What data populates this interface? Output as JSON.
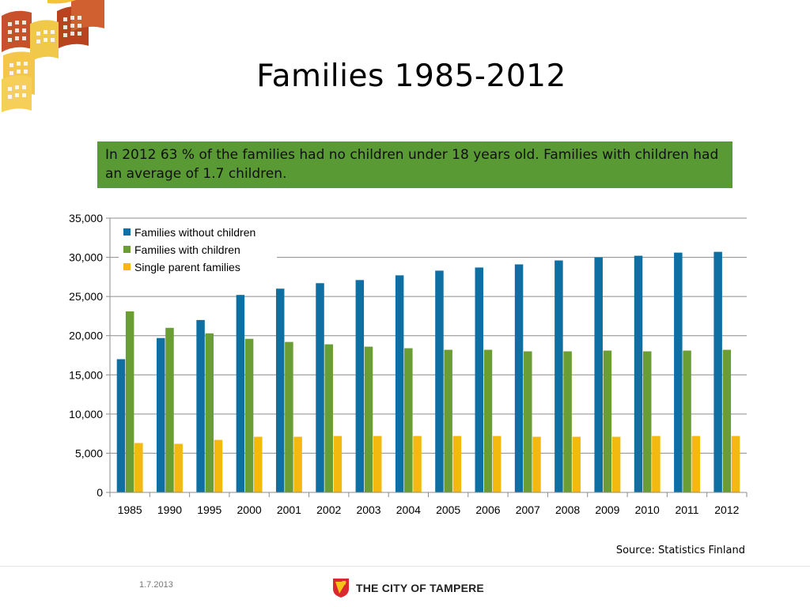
{
  "slide": {
    "title": "Families 1985-2012",
    "callout": "In 2012 63 % of the families had no children under 18 years old. Families with children had an average of 1.7 children.",
    "source": "Source: Statistics Finland",
    "footer_date": "1.7.2013",
    "footer_brand": "THE CITY OF TAMPERE",
    "callout_color": "#5a9a34"
  },
  "chart_data": {
    "type": "bar",
    "categories": [
      "1985",
      "1990",
      "1995",
      "2000",
      "2001",
      "2002",
      "2003",
      "2004",
      "2005",
      "2006",
      "2007",
      "2008",
      "2009",
      "2010",
      "2011",
      "2012"
    ],
    "series": [
      {
        "name": "Families without children",
        "color": "#0e6fa2",
        "values": [
          17000,
          19700,
          22000,
          25200,
          26000,
          26700,
          27100,
          27700,
          28300,
          28700,
          29100,
          29600,
          30000,
          30200,
          30600,
          30700
        ]
      },
      {
        "name": "Families with children",
        "color": "#6a9d34",
        "values": [
          23100,
          21000,
          20300,
          19600,
          19200,
          18900,
          18600,
          18400,
          18200,
          18200,
          18000,
          18000,
          18100,
          18000,
          18100,
          18200
        ]
      },
      {
        "name": "Single parent families",
        "color": "#f3b90f",
        "values": [
          6300,
          6200,
          6700,
          7100,
          7100,
          7200,
          7200,
          7200,
          7200,
          7200,
          7100,
          7100,
          7100,
          7200,
          7200,
          7200
        ]
      }
    ],
    "yticks": [
      "0",
      "5,000",
      "10,000",
      "15,000",
      "20,000",
      "25,000",
      "30,000",
      "35,000"
    ],
    "ylim": [
      0,
      35000
    ],
    "title": "",
    "xlabel": "",
    "ylabel": "",
    "grid": true,
    "legend": "top-left"
  }
}
